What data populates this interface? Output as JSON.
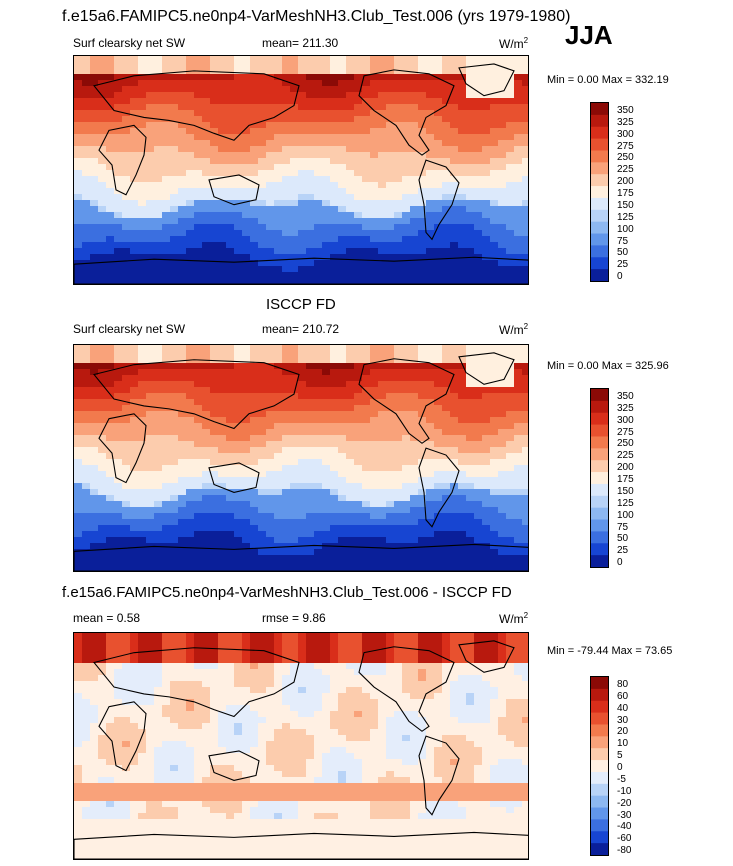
{
  "page": {
    "title": "f.e15a6.FAMIPC5.ne0np4-VarMeshNH3.Club_Test.006 (yrs 1979-1980)",
    "season": "JJA"
  },
  "chart_data": [
    {
      "type": "heatmap",
      "title": "",
      "subtitle_left": "Surf clearsky net SW",
      "mean_label": "mean= 211.30",
      "units_prefix": "W/m",
      "units_exp": "2",
      "stats": "Min =   0.00 Max = 332.19",
      "colorbar_levels": [
        "350",
        "325",
        "300",
        "275",
        "250",
        "225",
        "200",
        "175",
        "150",
        "125",
        "100",
        "75",
        "50",
        "25",
        "0"
      ],
      "colorbar_colors": [
        "#8b0a06",
        "#b8190e",
        "#d92e1a",
        "#e8512f",
        "#f27a4d",
        "#f9a27a",
        "#fcccad",
        "#fff0df",
        "#dce9fb",
        "#b8d3f7",
        "#8db8f1",
        "#6196ea",
        "#3b6fe0",
        "#1745d2",
        "#0a1f9a"
      ]
    },
    {
      "type": "heatmap",
      "title": "ISCCP FD",
      "subtitle_left": "Surf clearsky net SW",
      "mean_label": "mean= 210.72",
      "units_prefix": "W/m",
      "units_exp": "2",
      "stats": "Min =   0.00 Max = 325.96",
      "colorbar_levels": [
        "350",
        "325",
        "300",
        "275",
        "250",
        "225",
        "200",
        "175",
        "150",
        "125",
        "100",
        "75",
        "50",
        "25",
        "0"
      ],
      "colorbar_colors": [
        "#8b0a06",
        "#b8190e",
        "#d92e1a",
        "#e8512f",
        "#f27a4d",
        "#f9a27a",
        "#fcccad",
        "#fff0df",
        "#dce9fb",
        "#b8d3f7",
        "#8db8f1",
        "#6196ea",
        "#3b6fe0",
        "#1745d2",
        "#0a1f9a"
      ]
    },
    {
      "type": "heatmap",
      "title": "f.e15a6.FAMIPC5.ne0np4-VarMeshNH3.Club_Test.006 - ISCCP FD",
      "mean_label": "mean =   0.58",
      "rmse_label": "rmse =   9.86",
      "units_prefix": "W/m",
      "units_exp": "2",
      "stats": "Min = -79.44 Max =  73.65",
      "colorbar_levels": [
        "80",
        "60",
        "40",
        "30",
        "20",
        "10",
        "5",
        "0",
        "-5",
        "-10",
        "-20",
        "-30",
        "-40",
        "-60",
        "-80"
      ],
      "colorbar_colors": [
        "#8b0a06",
        "#b8190e",
        "#d92e1a",
        "#e8512f",
        "#f27a4d",
        "#f9a27a",
        "#fcccad",
        "#fff0e3",
        "#e4edfb",
        "#b8d3f7",
        "#8db8f1",
        "#6196ea",
        "#3b6fe0",
        "#1745d2",
        "#0a1f9a"
      ]
    }
  ]
}
